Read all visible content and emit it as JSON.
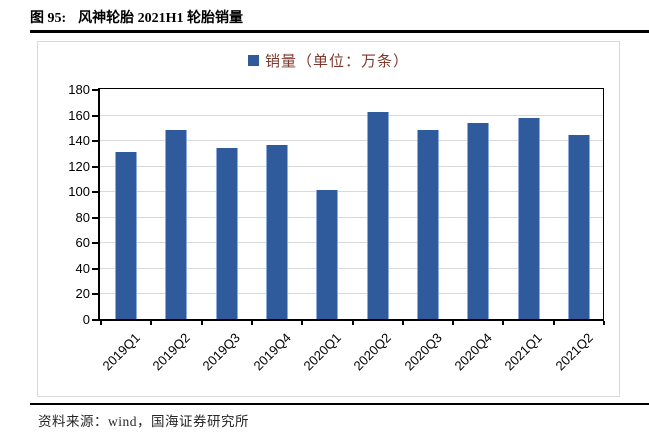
{
  "title": {
    "prefix": "图 95:",
    "text": "风神轮胎 2021H1 轮胎销量"
  },
  "legend": {
    "label": "销量（单位：万条）",
    "marker_color": "#2F5B9D"
  },
  "source": {
    "label": "资料来源：wind，国海证券研究所"
  },
  "colors": {
    "bar": "#2F5B9D",
    "bar_edge": "#8FAADC",
    "grid": "#D9D9D9",
    "axis": "#000000",
    "box_border": "#D9D9D9",
    "legend_text": "#7E382E",
    "title_text": "#000000",
    "source_text": "#262626"
  },
  "chart_data": {
    "type": "bar",
    "title": "图 95: 风神轮胎 2021H1 轮胎销量",
    "categories": [
      "2019Q1",
      "2019Q2",
      "2019Q3",
      "2019Q4",
      "2020Q1",
      "2020Q2",
      "2020Q3",
      "2020Q4",
      "2021Q1",
      "2021Q2"
    ],
    "values": [
      131,
      148,
      134,
      136,
      101,
      162,
      148,
      153,
      157,
      144
    ],
    "series_name": "销量（单位：万条）",
    "xlabel": "",
    "ylabel": "",
    "ylim": [
      0,
      180
    ],
    "ytick_step": 20,
    "grid": true,
    "legend_position": "top"
  }
}
